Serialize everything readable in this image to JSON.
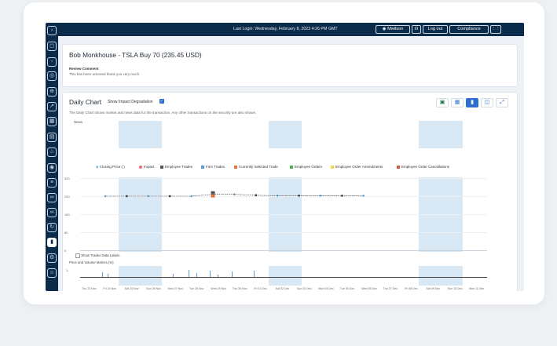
{
  "topbar": {
    "last_login": "Last Login: Wednesday, February 8, 2023 4:26 PM GMT",
    "user": "Mwilson",
    "logout": "Log out",
    "compliance": "Compliance"
  },
  "review": {
    "title": "Bob Monkhouse - TSLA Buy 70 (235.45 USD)",
    "comment_label": "Review Comment",
    "comment": "This has been actioned thank you very much"
  },
  "chart_panel": {
    "title": "Daily Chart",
    "toggle_label": "Show Impact Degradation",
    "description": "The Daily Chart shows market and news data for the transaction. Any other transactions on the security are also shown.",
    "news_label": "News",
    "show_trades_label": "Show Trades Data Labels",
    "metrics_label": "Price and Volume Metrics (%)"
  },
  "legend": [
    {
      "label": "Closing Price ( )",
      "color": "#6baed6"
    },
    {
      "label": "Impact",
      "color": "#ef6b73"
    },
    {
      "label": "Employee Trades",
      "color": "#555555"
    },
    {
      "label": "Firm Trades",
      "color": "#5a9bd5"
    },
    {
      "label": "Currently Selected Trade",
      "color": "#e8743b"
    },
    {
      "label": "Employee Orders",
      "color": "#4caf50"
    },
    {
      "label": "Employee Order Amendments",
      "color": "#f5d742"
    },
    {
      "label": "Employee Order Cancellations",
      "color": "#d9534f"
    }
  ],
  "chart_data": {
    "type": "line",
    "x": [
      "Thu 23 Nov",
      "Fri 24 Nov",
      "Sat 25 Nov",
      "Sun 26 Nov",
      "Mon 27 Nov",
      "Tue 28 Nov",
      "Wed 29 Nov",
      "Thu 30 Nov",
      "Fri 01 Dec",
      "Sat 02 Dec",
      "Sun 03 Dec",
      "Mon 04 Dec",
      "Tue 05 Dec",
      "Wed 06 Dec",
      "Thu 07 Dec",
      "Fri 08 Dec",
      "Sat 09 Dec",
      "Sun 10 Dec",
      "Mon 11 Dec"
    ],
    "yticks": [
      320,
      240,
      160,
      80,
      0
    ],
    "ylim": [
      0,
      320
    ],
    "series": [
      {
        "name": "Closing Price ( )",
        "values": [
          240,
          240,
          240,
          240,
          240,
          248,
          248,
          244,
          242,
          242,
          242,
          242,
          242,
          null,
          null,
          null,
          null,
          null,
          null
        ]
      }
    ],
    "selected_trade_index": 5
  },
  "sidebar_icons": [
    "collapse-icon",
    "chat-icon",
    "users-icon",
    "alerts-icon",
    "globe-icon",
    "trend-icon",
    "calendar-icon",
    "documents-icon",
    "bank-icon",
    "surveillance-icon",
    "list-icon",
    "network-icon",
    "binoculars-icon",
    "refresh-icon",
    "chart-icon",
    "settings-icon",
    "support-icon"
  ]
}
